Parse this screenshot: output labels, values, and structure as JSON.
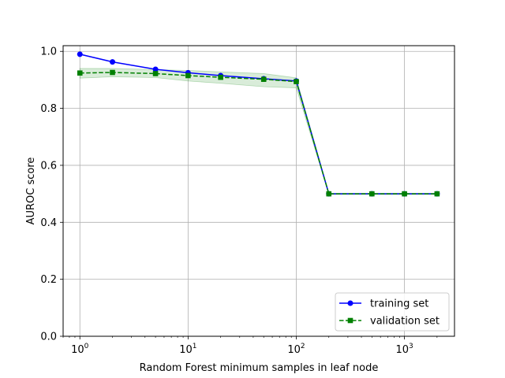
{
  "chart_data": {
    "type": "line",
    "xscale": "log",
    "xlabel": "Random Forest minimum samples in leaf node",
    "ylabel": "AUROC score",
    "xlim": [
      0.7,
      2900
    ],
    "ylim": [
      0.0,
      1.02
    ],
    "x": [
      1,
      2,
      5,
      10,
      20,
      50,
      100,
      200,
      500,
      1000,
      2000
    ],
    "x_ticks": [
      {
        "value": 1,
        "base": "10",
        "exp": "0"
      },
      {
        "value": 10,
        "base": "10",
        "exp": "1"
      },
      {
        "value": 100,
        "base": "10",
        "exp": "2"
      },
      {
        "value": 1000,
        "base": "10",
        "exp": "3"
      }
    ],
    "y_ticks": [
      {
        "value": 0.0,
        "label": "0.0"
      },
      {
        "value": 0.2,
        "label": "0.2"
      },
      {
        "value": 0.4,
        "label": "0.4"
      },
      {
        "value": 0.6,
        "label": "0.6"
      },
      {
        "value": 0.8,
        "label": "0.8"
      },
      {
        "value": 1.0,
        "label": "1.0"
      }
    ],
    "grid": true,
    "legend_position": "bottom-right",
    "series": [
      {
        "name": "training set",
        "color": "#0000ff",
        "marker": "circle",
        "linestyle": "solid",
        "values": [
          0.99,
          0.963,
          0.937,
          0.925,
          0.915,
          0.904,
          0.896,
          0.5,
          0.5,
          0.5,
          0.5
        ]
      },
      {
        "name": "validation set",
        "color": "#008000",
        "marker": "square",
        "linestyle": "dashed",
        "values": [
          0.924,
          0.926,
          0.922,
          0.915,
          0.909,
          0.902,
          0.894,
          0.5,
          0.5,
          0.5,
          0.5
        ],
        "band_lower": [
          0.906,
          0.911,
          0.908,
          0.896,
          0.888,
          0.876,
          0.872,
          0.498,
          0.498,
          0.498,
          0.498
        ],
        "band_upper": [
          0.94,
          0.94,
          0.936,
          0.933,
          0.928,
          0.922,
          0.907,
          0.502,
          0.502,
          0.502,
          0.502
        ],
        "band_color": "#008000"
      }
    ]
  }
}
